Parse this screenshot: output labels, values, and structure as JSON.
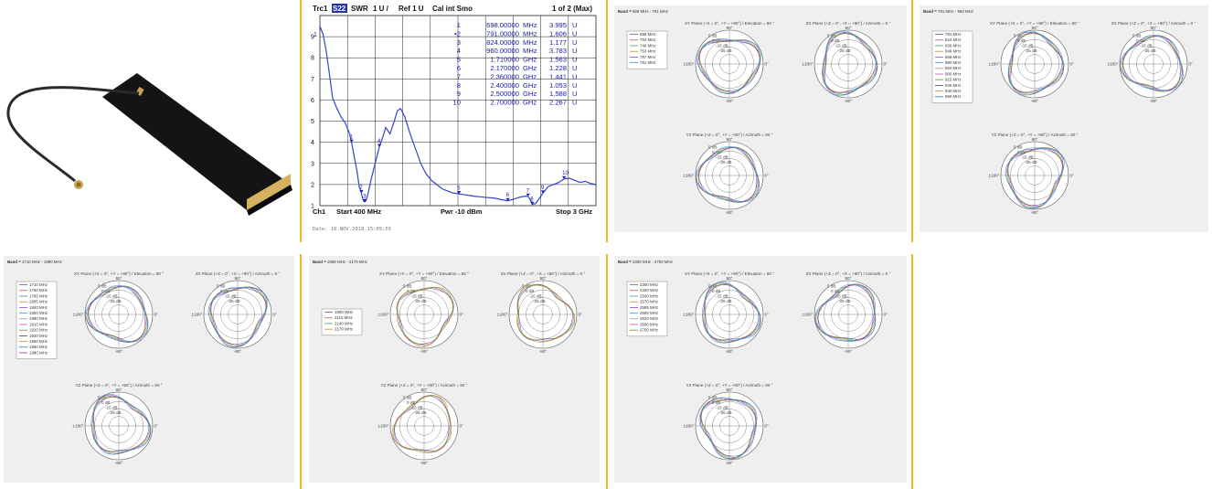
{
  "colors": {
    "divider": "#f2b81c",
    "vna_trace": "#3344cc",
    "vna_text": "#1a1aa8",
    "vna_grid": "#222222",
    "panel_bg": "#efefef"
  },
  "antenna_icon": "flexible-pcb-antenna-with-coax-cable",
  "vna": {
    "header": {
      "trc": "Trc1",
      "s": "S22",
      "fmt": "SWR",
      "scale": "1 U /",
      "ref": "Ref 1 U",
      "cal": "Cal int Smo",
      "page": "1 of 2 (Max)"
    },
    "y_ticks": [
      "9",
      "8",
      "7",
      "6",
      "5",
      "4",
      "3",
      "2",
      "1"
    ],
    "ref_label": "1",
    "footer": {
      "ch": "Ch1",
      "start": "Start  400 MHz",
      "pwr": "Pwr -10 dBm",
      "stop": "Stop  3 GHz"
    },
    "date": "Date: 16.NOV.2018  15:05:55",
    "markers": [
      {
        "id": "1",
        "prefix": "",
        "freq": "698.00000",
        "unit": "MHz",
        "value": "3.995",
        "vunit": "U"
      },
      {
        "id": "2",
        "prefix": "•",
        "freq": "791.00000",
        "unit": "MHz",
        "value": "1.606",
        "vunit": "U"
      },
      {
        "id": "3",
        "prefix": "",
        "freq": "824.00000",
        "unit": "MHz",
        "value": "1.177",
        "vunit": "U"
      },
      {
        "id": "4",
        "prefix": "",
        "freq": "960.00000",
        "unit": "MHz",
        "value": "3.783",
        "vunit": "U"
      },
      {
        "id": "5",
        "prefix": "",
        "freq": "1.710000",
        "unit": "GHz",
        "value": "1.563",
        "vunit": "U"
      },
      {
        "id": "6",
        "prefix": "",
        "freq": "2.170000",
        "unit": "GHz",
        "value": "1.228",
        "vunit": "U"
      },
      {
        "id": "7",
        "prefix": "",
        "freq": "2.360000",
        "unit": "GHz",
        "value": "1.441",
        "vunit": "U"
      },
      {
        "id": "8",
        "prefix": "",
        "freq": "2.400000",
        "unit": "GHz",
        "value": "1.053",
        "vunit": "U"
      },
      {
        "id": "9",
        "prefix": "",
        "freq": "2.500000",
        "unit": "GHz",
        "value": "1.588",
        "vunit": "U"
      },
      {
        "id": "10",
        "prefix": "",
        "freq": "2.700000",
        "unit": "GHz",
        "value": "2.267",
        "vunit": "U"
      }
    ]
  },
  "chart_data": [
    {
      "type": "line",
      "title": "",
      "xlabel": "",
      "ylabel": "",
      "xlim": [
        400,
        3000
      ],
      "ylim": [
        1,
        10
      ],
      "x_unit": "MHz",
      "grid": true,
      "series": [
        {
          "x": [
            400,
            430,
            460,
            490,
            520,
            560,
            600,
            640,
            680,
            698,
            720,
            750,
            770,
            791,
            805,
            815,
            824,
            835,
            850,
            880,
            920,
            960,
            990,
            1020,
            1060,
            1100,
            1130,
            1160,
            1200,
            1250,
            1300,
            1350,
            1400,
            1450,
            1500,
            1550,
            1600,
            1650,
            1710,
            1780,
            1850,
            1950,
            2050,
            2100,
            2170,
            2220,
            2280,
            2330,
            2360,
            2380,
            2400,
            2430,
            2460,
            2500,
            2550,
            2600,
            2650,
            2700,
            2750,
            2800,
            2850,
            2900,
            2950,
            3000
          ],
          "y": [
            9.5,
            9.1,
            8.3,
            7.2,
            6.1,
            5.6,
            5.2,
            4.9,
            4.4,
            4.0,
            3.4,
            2.6,
            1.9,
            1.6,
            1.3,
            1.2,
            1.18,
            1.25,
            1.5,
            2.2,
            3.0,
            3.78,
            4.2,
            4.7,
            4.4,
            5.0,
            5.5,
            5.6,
            5.2,
            4.4,
            3.7,
            3.0,
            2.5,
            2.2,
            2.0,
            1.8,
            1.7,
            1.6,
            1.56,
            1.5,
            1.45,
            1.4,
            1.35,
            1.3,
            1.23,
            1.3,
            1.4,
            1.45,
            1.44,
            1.3,
            1.05,
            1.1,
            1.3,
            1.59,
            1.9,
            2.0,
            2.1,
            2.27,
            2.3,
            2.2,
            2.1,
            2.15,
            2.05,
            2.0
          ]
        }
      ],
      "markers": [
        {
          "id": "1",
          "x": 698,
          "y": 3.995
        },
        {
          "id": "2",
          "x": 791,
          "y": 1.606
        },
        {
          "id": "3",
          "x": 824,
          "y": 1.177
        },
        {
          "id": "4",
          "x": 960,
          "y": 3.783
        },
        {
          "id": "5",
          "x": 1710,
          "y": 1.563
        },
        {
          "id": "6",
          "x": 2170,
          "y": 1.228
        },
        {
          "id": "7",
          "x": 2360,
          "y": 1.441
        },
        {
          "id": "8",
          "x": 2400,
          "y": 1.053
        },
        {
          "id": "9",
          "x": 2500,
          "y": 1.588
        },
        {
          "id": "10",
          "x": 2700,
          "y": 2.267
        }
      ]
    },
    {
      "type": "polar",
      "band": "698 MHz - 791 MHz",
      "band_prefix": "Band",
      "planes": [
        "XY Plane (+X = 0°, +Y = +90°) / Elevation = 90 °",
        "ZX Plane (+Z = 0°, +X = +90°) / Azimuth = 0 °",
        "YZ Plane (+Z = 0°, +Y = +90°) / Azimuth = 90 °"
      ],
      "legend": [
        "698 MHz",
        "704 MHz",
        "746 MHz",
        "753 MHz",
        "787 MHz",
        "791 MHz"
      ],
      "rlim_db": [
        -30,
        5
      ]
    },
    {
      "type": "polar",
      "band": "791 MHz - 960 MHz",
      "band_prefix": "Band",
      "planes": [
        "XY Plane (+X = 0°, +Y = +90°) / Elevation = 90 °",
        "ZX Plane (+Z = 0°, +X = +90°) / Azimuth = 0 °",
        "YZ Plane (+Z = 0°, +Y = +90°) / Azimuth = 90 °"
      ],
      "legend": [
        "791 MHz",
        "824 MHz",
        "836 MHz",
        "849 MHz",
        "869 MHz",
        "880 MHz",
        "894 MHz",
        "900 MHz",
        "915 MHz",
        "925 MHz",
        "940 MHz",
        "960 MHz"
      ],
      "rlim_db": [
        -30,
        5
      ]
    },
    {
      "type": "polar",
      "band": "1710 MHz - 1990 MHz",
      "band_prefix": "Band",
      "planes": [
        "XY Plane (+X = 0°, +Y = +90°) / Elevation = 90 °",
        "ZX Plane (+Z = 0°, +X = +90°) / Azimuth = 0 °",
        "YZ Plane (+Z = 0°, +Y = +90°) / Azimuth = 90 °"
      ],
      "legend": [
        "1710 MHz",
        "1750 MHz",
        "1785 MHz",
        "1805 MHz",
        "1840 MHz",
        "1850 MHz",
        "1880 MHz",
        "1910 MHz",
        "1920 MHz",
        "1930 MHz",
        "1950 MHz",
        "1960 MHz",
        "1980 MHz"
      ],
      "rlim_db": [
        -30,
        5
      ]
    },
    {
      "type": "polar",
      "band": "1990 MHz - 2170 MHz",
      "band_prefix": "Band",
      "planes": [
        "XY Plane (+X = 0°, +Y = +90°) / Elevation = 90 °",
        "ZX Plane (+Z = 0°, +X = +90°) / Azimuth = 0 °",
        "YZ Plane (+Z = 0°, +Y = +90°) / Azimuth = 90 °"
      ],
      "legend": [
        "1990 MHz",
        "2110 MHz",
        "2140 MHz",
        "2170 MHz"
      ],
      "rlim_db": [
        -30,
        5
      ]
    },
    {
      "type": "polar",
      "band": "2300 MHz - 2700 MHz",
      "band_prefix": "Band",
      "planes": [
        "XY Plane (+X = 0°, +Y = +90°) / Elevation = 90 °",
        "ZX Plane (+Z = 0°, +X = +90°) / Azimuth = 0 °",
        "YZ Plane (+Z = 0°, +Y = +90°) / Azimuth = 90 °"
      ],
      "legend": [
        "2300 MHz",
        "2400 MHz",
        "2500 MHz",
        "2570 MHz",
        "2585 MHz",
        "2600 MHz",
        "2620 MHz",
        "2690 MHz",
        "2700 MHz"
      ],
      "rlim_db": [
        -30,
        5
      ]
    }
  ],
  "polar_axis": {
    "ring_labels": [
      "5 dB",
      "0 dB",
      "-15 dB",
      "-25 dB"
    ],
    "ang_top": "90°",
    "ang_bottom": "-90°",
    "ang_left": "±180°",
    "ang_right": "0°"
  },
  "legend_colors": [
    "#4b5bd6",
    "#d64b4b",
    "#3aa85a",
    "#c98a2a",
    "#8a4bd6",
    "#2aa8c9",
    "#999999",
    "#d64bb0",
    "#6b8e23",
    "#444444",
    "#e07b39",
    "#1f77b4",
    "#7f3f98"
  ]
}
